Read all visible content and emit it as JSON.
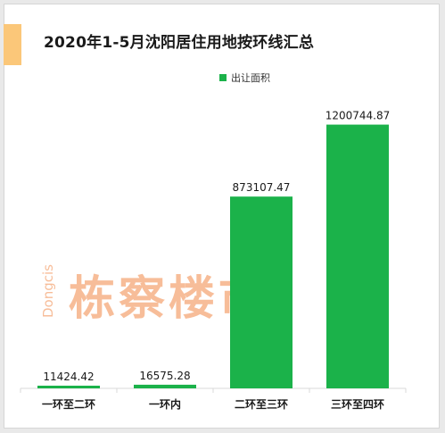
{
  "title": "2020年1-5月沈阳居住用地按环线汇总",
  "watermark": {
    "main": "栋察楼市",
    "side": "Dongcis"
  },
  "colors": {
    "bar": "#1bb24a",
    "accent": "#fbc779",
    "watermark": "#f5a878"
  },
  "chart_data": {
    "type": "bar",
    "categories": [
      "一环至二环",
      "一环内",
      "二环至三环",
      "三环至四环"
    ],
    "series": [
      {
        "name": "出让面积",
        "values": [
          11424.42,
          16575.28,
          873107.47,
          1200744.87
        ]
      }
    ],
    "value_labels": [
      "11424.42",
      "16575.28",
      "873107.47",
      "1200744.87"
    ],
    "legend": "top-center",
    "grid": false,
    "ylim": [
      0,
      1260000
    ]
  }
}
